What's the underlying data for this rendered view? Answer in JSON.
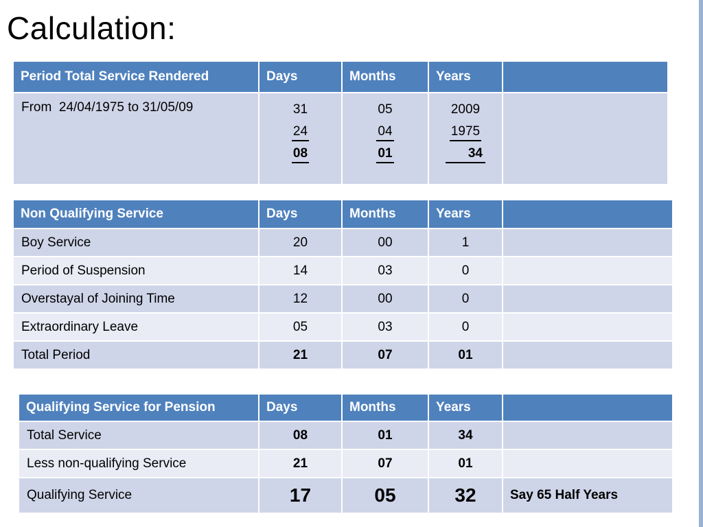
{
  "title": "Calculation:",
  "colors": {
    "header_bg": "#4f81bd",
    "header_text": "#ffffff",
    "row_dark": "#cfd5e8",
    "row_light": "#e9ebf5",
    "edge": "#9ab3d5"
  },
  "period_table": {
    "headers": [
      "Period Total Service Rendered",
      "Days",
      "Months",
      "Years",
      ""
    ],
    "row": {
      "label": "From  24/04/1975 to 31/05/09",
      "days": [
        "31",
        "24",
        "08"
      ],
      "months": [
        "05",
        "04",
        "01"
      ],
      "years": [
        "2009",
        "1975",
        "34"
      ]
    }
  },
  "non_qualifying_table": {
    "headers": [
      "Non Qualifying Service",
      "Days",
      "Months",
      "Years",
      ""
    ],
    "rows": [
      {
        "label": "Boy Service",
        "days": "20",
        "months": "00",
        "years": "1"
      },
      {
        "label": "Period of Suspension",
        "days": "14",
        "months": "03",
        "years": "0"
      },
      {
        "label": "Overstayal of Joining Time",
        "days": "12",
        "months": "00",
        "years": "0"
      },
      {
        "label": "Extraordinary Leave",
        "days": "05",
        "months": "03",
        "years": "0"
      },
      {
        "label": "Total Period",
        "days": "21",
        "months": "07",
        "years": "01"
      }
    ]
  },
  "qualifying_table": {
    "headers": [
      "Qualifying Service for Pension",
      "Days",
      "Months",
      "Years",
      ""
    ],
    "rows": [
      {
        "label": "Total Service",
        "days": "08",
        "months": "01",
        "years": "34",
        "note": ""
      },
      {
        "label": "Less non-qualifying Service",
        "days": "21",
        "months": "07",
        "years": "01",
        "note": ""
      },
      {
        "label": "Qualifying Service",
        "days": "17",
        "months": "05",
        "years": "32",
        "note": "Say 65 Half Years"
      }
    ]
  }
}
